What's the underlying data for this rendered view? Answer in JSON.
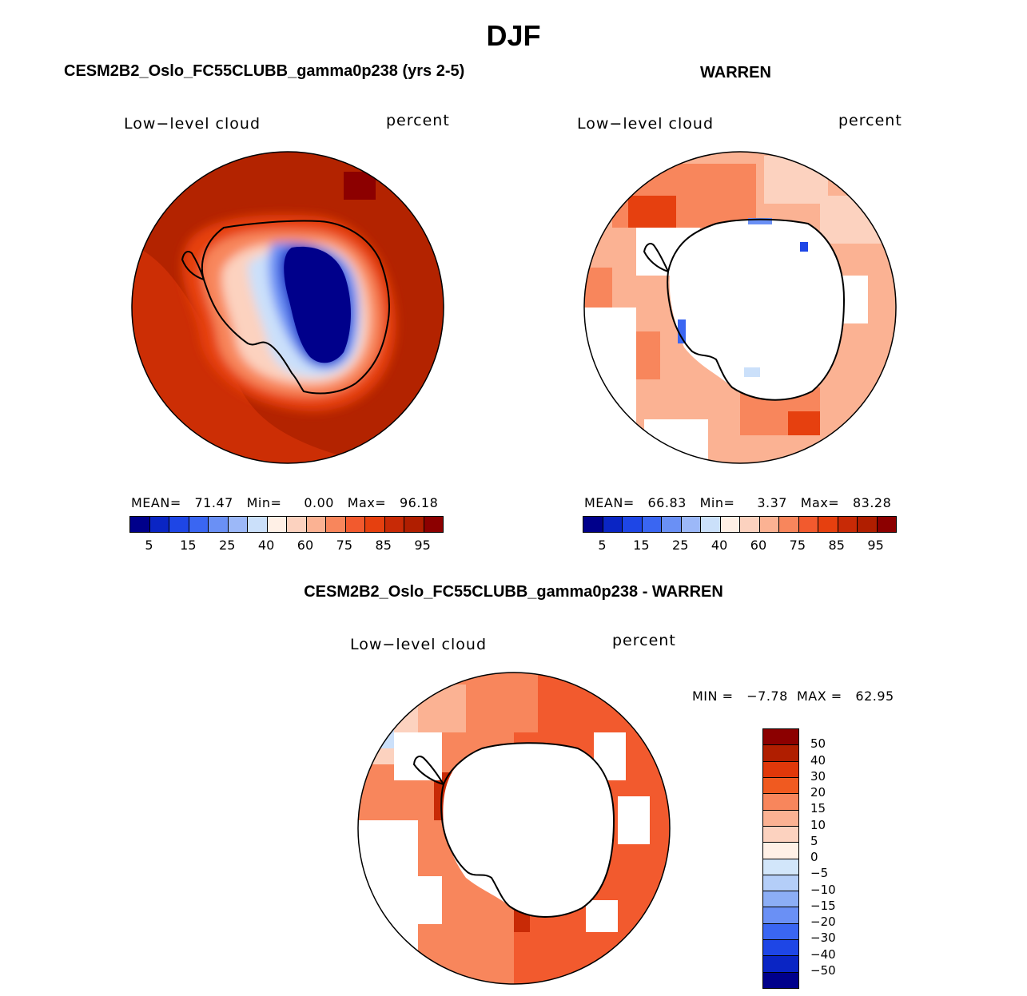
{
  "page": {
    "title": "DJF"
  },
  "panels": {
    "model": {
      "title": "CESM2B2_Oslo_FC55CLUBB_gamma0p238 (yrs 2-5)",
      "variable": "Low−level cloud",
      "units": "percent",
      "stats": {
        "mean_label": "MEAN=",
        "mean": "71.47",
        "min_label": "Min=",
        "min": "0.00",
        "max_label": "Max=",
        "max": "96.18"
      }
    },
    "obs": {
      "title": "WARREN",
      "variable": "Low−level cloud",
      "units": "percent",
      "stats": {
        "mean_label": "MEAN=",
        "mean": "66.83",
        "min_label": "Min=",
        "min": "3.37",
        "max_label": "Max=",
        "max": "83.28"
      }
    },
    "diff": {
      "title": "CESM2B2_Oslo_FC55CLUBB_gamma0p238 - WARREN",
      "variable": "Low−level cloud",
      "units": "percent",
      "stats": {
        "min_label": "MIN =",
        "min": "−7.78",
        "max_label": "MAX =",
        "max": "62.95"
      }
    }
  },
  "colorbar_abs": {
    "colors": [
      "#00008b",
      "#0a25c4",
      "#1e46e6",
      "#3a66f2",
      "#6a90f5",
      "#9cb8f8",
      "#cbe0fa",
      "#fff0e6",
      "#fcd2bf",
      "#fbb293",
      "#f8865c",
      "#f25a2e",
      "#e6400f",
      "#c82a06",
      "#b01e00",
      "#8c0000"
    ],
    "tick_labels": [
      "5",
      "15",
      "25",
      "40",
      "60",
      "75",
      "85",
      "95"
    ]
  },
  "colorbar_diff": {
    "colors": [
      "#8c0000",
      "#b01e00",
      "#e0380a",
      "#f05a20",
      "#f8865c",
      "#fbb293",
      "#fcd2bf",
      "#fff0e6",
      "#d2e6fa",
      "#b4cef8",
      "#8caef5",
      "#6a90f5",
      "#3a66f2",
      "#1e46e6",
      "#0a25c4",
      "#00008b"
    ],
    "tick_labels": [
      "50",
      "40",
      "30",
      "20",
      "15",
      "10",
      "5",
      "0",
      "−5",
      "−10",
      "−15",
      "−20",
      "−30",
      "−40",
      "−50"
    ]
  }
}
